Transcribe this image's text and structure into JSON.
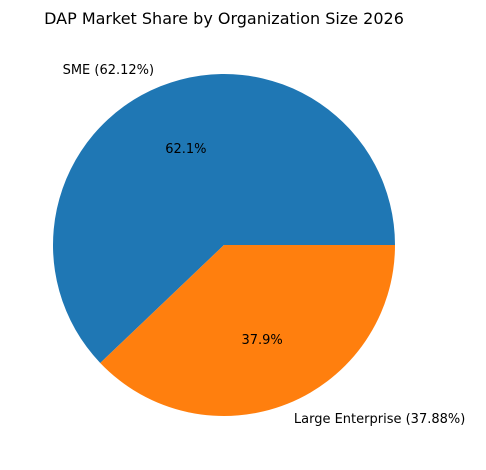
{
  "chart_data": {
    "type": "pie",
    "title": "DAP Market Share by Organization Size 2026",
    "slices": [
      {
        "label": "SME (62.12%)",
        "name": "SME",
        "value": 62.12,
        "pct_label": "62.1%",
        "color": "#1f77b4"
      },
      {
        "label": "Large Enterprise (37.88%)",
        "name": "Large Enterprise",
        "value": 37.88,
        "pct_label": "37.9%",
        "color": "#ff7f0e"
      }
    ],
    "start_angle_deg": 0,
    "direction": "counterclockwise"
  }
}
